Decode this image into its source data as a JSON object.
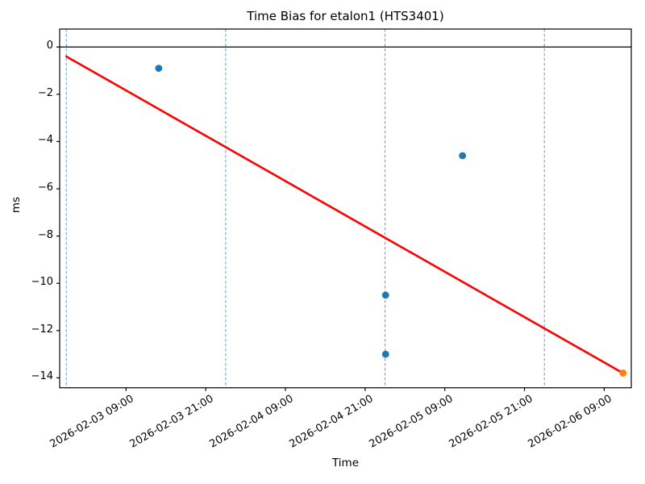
{
  "chart_data": {
    "type": "scatter",
    "title": "Time Bias for etalon1 (HTS3401)",
    "xlabel": "Time",
    "ylabel": "ms",
    "grid": false,
    "legend": null,
    "x_axis": {
      "label": "Time",
      "tick_labels": [
        "2026-02-03 09:00",
        "2026-02-03 21:00",
        "2026-02-04 09:00",
        "2026-02-04 21:00",
        "2026-02-05 09:00",
        "2026-02-05 21:00",
        "2026-02-06 09:00"
      ],
      "tick_rotation_deg": 30,
      "range": [
        "2026-02-02 23:00",
        "2026-02-06 13:05"
      ]
    },
    "y_axis": {
      "label": "ms",
      "tick_labels": [
        "0",
        "−2",
        "−4",
        "−6",
        "−8",
        "−10",
        "−12",
        "−14"
      ],
      "tick_values": [
        0,
        -2,
        -4,
        -6,
        -8,
        -10,
        -12,
        -14
      ],
      "range": [
        -14.42,
        0.76
      ]
    },
    "day_boundary_lines": {
      "style": "dashed",
      "color": "#6ca6d5",
      "times": [
        "2026-02-03 00:00",
        "2026-02-04 00:00",
        "2026-02-05 00:00",
        "2026-02-06 00:00"
      ]
    },
    "zero_line": {
      "value": 0,
      "color": "#000000"
    },
    "series": [
      {
        "name": "time-bias-measurements",
        "marker": "circle",
        "color": "#1f77b4",
        "points": [
          {
            "time": "2026-02-03 13:55",
            "ms": -0.9
          },
          {
            "time": "2026-02-05 00:05",
            "ms": -10.5
          },
          {
            "time": "2026-02-05 00:05",
            "ms": -13.0
          },
          {
            "time": "2026-02-05 11:40",
            "ms": -4.6
          }
        ]
      },
      {
        "name": "latest-measurement",
        "marker": "circle",
        "color": "#ff7f0e",
        "points": [
          {
            "time": "2026-02-06 11:50",
            "ms": -13.8
          }
        ]
      }
    ],
    "trend_line": {
      "name": "linear-fit",
      "color": "#ff0000",
      "from": {
        "time": "2026-02-03 00:00",
        "ms": -0.4
      },
      "to": {
        "time": "2026-02-06 11:50",
        "ms": -13.8
      }
    }
  }
}
